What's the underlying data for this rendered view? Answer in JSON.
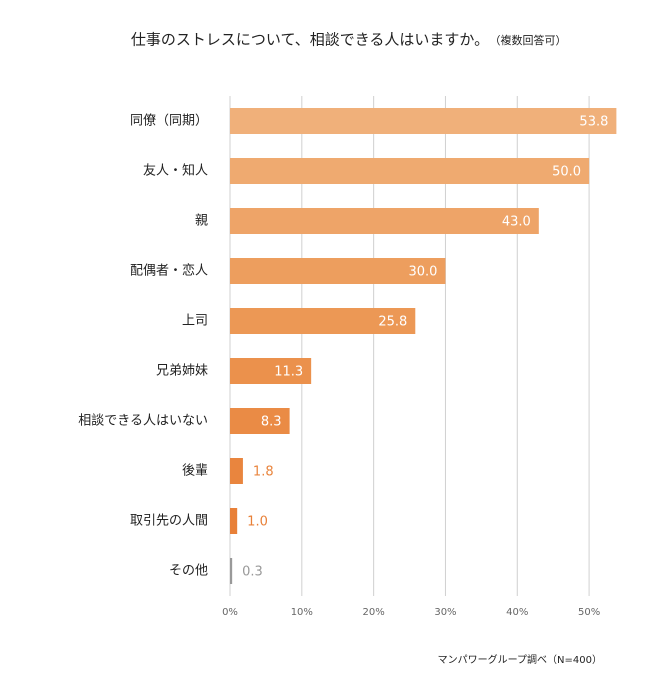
{
  "chart_data": {
    "type": "bar",
    "orientation": "horizontal",
    "title": "仕事のストレスについて、相談できる人はいますか。",
    "subtitle": "（複数回答可）",
    "source": "マンパワーグループ調べ（N=400）",
    "categories": [
      "同僚（同期）",
      "友人・知人",
      "親",
      "配偶者・恋人",
      "上司",
      "兄弟姉妹",
      "相談できる人はいない",
      "後輩",
      "取引先の人間",
      "その他"
    ],
    "values": [
      53.8,
      50.0,
      43.0,
      30.0,
      25.8,
      11.3,
      8.3,
      1.8,
      1.0,
      0.3
    ],
    "value_labels": [
      "53.8",
      "50.0",
      "43.0",
      "30.0",
      "25.8",
      "11.3",
      "8.3",
      "1.8",
      "1.0",
      "0.3"
    ],
    "colors": [
      "#f0b07a",
      "#efaa70",
      "#eea468",
      "#ed9e5e",
      "#ec9855",
      "#eb914c",
      "#ea8b45",
      "#e9853e",
      "#e88038",
      "#999999"
    ],
    "xlim": [
      0,
      55
    ],
    "xticks": [
      {
        "value": 0,
        "label": "0%"
      },
      {
        "value": 10,
        "label": "10%"
      },
      {
        "value": 20,
        "label": "20%"
      },
      {
        "value": 30,
        "label": "30%"
      },
      {
        "value": 40,
        "label": "40%"
      },
      {
        "value": 50,
        "label": "50%"
      }
    ],
    "grid": true
  }
}
